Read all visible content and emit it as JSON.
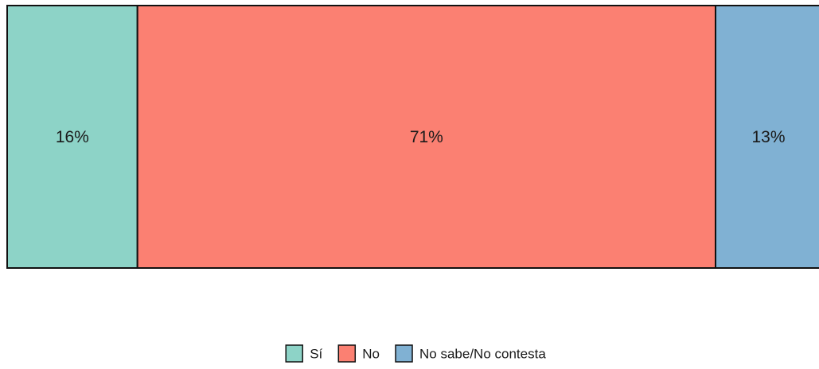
{
  "chart_data": {
    "type": "bar",
    "orientation": "horizontal-stacked",
    "categories": [
      "Sí",
      "No",
      "No sabe/No contesta"
    ],
    "values": [
      16,
      71,
      13
    ],
    "value_labels": [
      "16%",
      "71%",
      "13%"
    ],
    "unit": "%",
    "colors": [
      "#8dd3c7",
      "#fb8072",
      "#80b1d3"
    ],
    "legend": {
      "position": "bottom-center",
      "entries": [
        "Sí",
        "No",
        "No sabe/No contesta"
      ]
    },
    "grid": false
  }
}
